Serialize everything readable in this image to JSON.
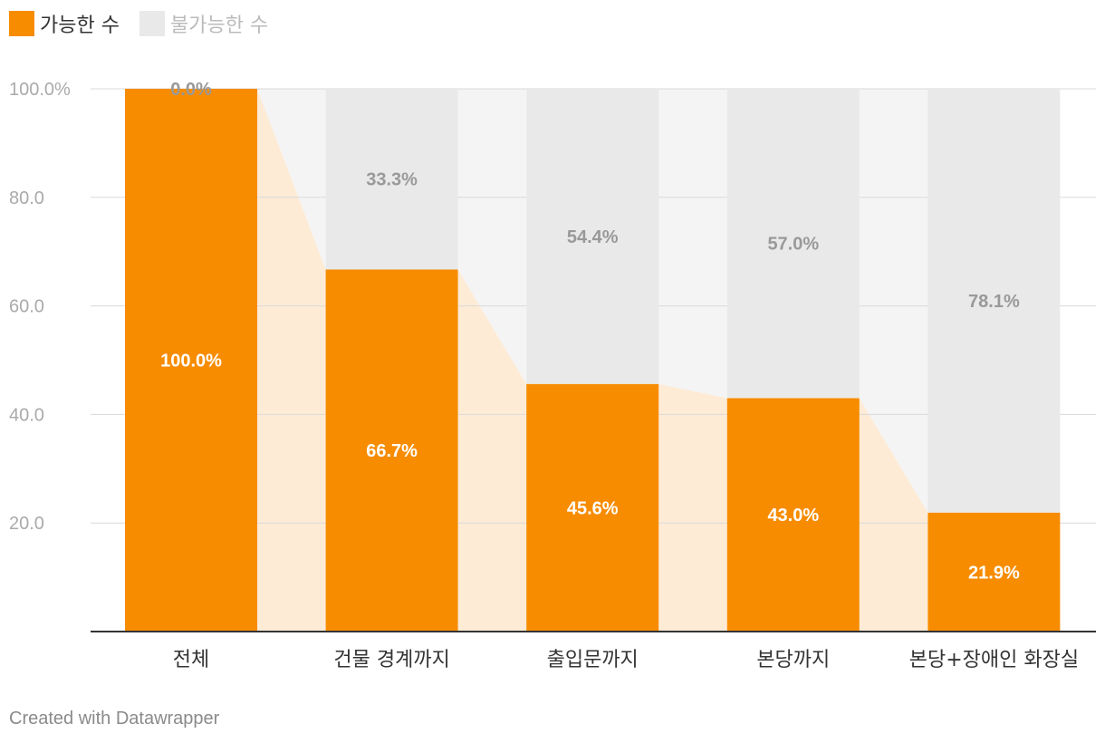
{
  "legend": {
    "items": [
      {
        "label": "가능한 수",
        "color": "#f78c00"
      },
      {
        "label": "불가능한 수",
        "color": "#e9e9e9"
      }
    ]
  },
  "footer": "Created with Datawrapper",
  "chart_data": {
    "type": "bar",
    "stacked": true,
    "categories": [
      "전체",
      "건물 경계까지",
      "출입문까지",
      "본당까지",
      "본당+장애인 화장실"
    ],
    "series": [
      {
        "name": "가능한 수",
        "values": [
          100.0,
          66.7,
          45.6,
          43.0,
          21.9
        ],
        "labels": [
          "100.0%",
          "66.7%",
          "45.6%",
          "43.0%",
          "21.9%"
        ],
        "color": "#f78c00"
      },
      {
        "name": "불가능한 수",
        "values": [
          0.0,
          33.3,
          54.4,
          57.0,
          78.1
        ],
        "labels": [
          "0.0%",
          "33.3%",
          "54.4%",
          "57.0%",
          "78.1%"
        ],
        "color": "#e9e9e9"
      }
    ],
    "ylim": [
      0,
      100
    ],
    "yticks": [
      20,
      40,
      60,
      80,
      100
    ],
    "ytick_labels": [
      "20.0",
      "40.0",
      "60.0",
      "80.0",
      "100.0%"
    ],
    "grid": true,
    "legend_position": "top-left",
    "connector_colors": {
      "possible": "#fdebd6",
      "impossible": "#f4f4f4"
    }
  }
}
